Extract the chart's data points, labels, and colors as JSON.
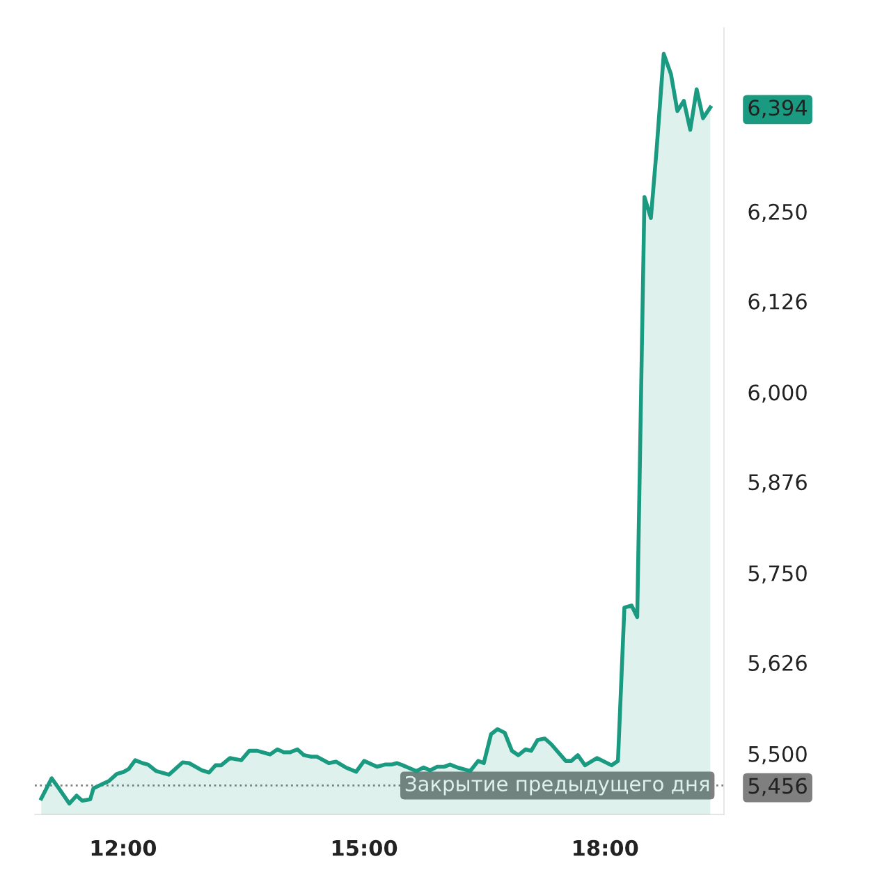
{
  "chart_data": {
    "type": "area",
    "color": "#1a9a80",
    "x": [
      10.98,
      11.11,
      11.2,
      11.33,
      11.42,
      11.49,
      11.59,
      11.63,
      11.74,
      11.82,
      11.92,
      12.01,
      12.07,
      12.15,
      12.24,
      12.31,
      12.41,
      12.57,
      12.74,
      12.82,
      12.98,
      13.07,
      13.15,
      13.22,
      13.33,
      13.47,
      13.57,
      13.67,
      13.83,
      13.92,
      14.0,
      14.08,
      14.17,
      14.25,
      14.34,
      14.41,
      14.56,
      14.65,
      14.77,
      14.9,
      15.0,
      15.16,
      15.26,
      15.34,
      15.41,
      15.48,
      15.65,
      15.74,
      15.82,
      15.91,
      16.0,
      16.07,
      16.16,
      16.32,
      16.42,
      16.49,
      16.58,
      16.66,
      16.75,
      16.84,
      16.92,
      17.01,
      17.08,
      17.16,
      17.25,
      17.33,
      17.51,
      17.58,
      17.66,
      17.75,
      17.9,
      18.08,
      18.16,
      18.24,
      18.33,
      18.4,
      18.49,
      18.57,
      18.64,
      18.73,
      18.82,
      18.9,
      18.98,
      19.06,
      19.14,
      19.22,
      19.31
    ],
    "values": [
      5438,
      5466,
      5452,
      5431,
      5442,
      5435,
      5437,
      5452,
      5458,
      5462,
      5472,
      5475,
      5479,
      5491,
      5487,
      5485,
      5476,
      5471,
      5488,
      5487,
      5477,
      5474,
      5484,
      5484,
      5494,
      5491,
      5504,
      5504,
      5499,
      5506,
      5502,
      5502,
      5506,
      5498,
      5496,
      5496,
      5487,
      5489,
      5481,
      5475,
      5490,
      5482,
      5485,
      5485,
      5487,
      5484,
      5476,
      5481,
      5477,
      5482,
      5482,
      5485,
      5481,
      5476,
      5490,
      5487,
      5527,
      5534,
      5529,
      5504,
      5498,
      5506,
      5504,
      5519,
      5521,
      5513,
      5490,
      5490,
      5498,
      5484,
      5494,
      5484,
      5490,
      5702,
      5705,
      5689,
      6270,
      6241,
      6334,
      6468,
      6440,
      6389,
      6403,
      6363,
      6419,
      6379,
      6394
    ],
    "xlim": [
      10.9,
      19.48
    ],
    "ylim": [
      5416,
      6504
    ],
    "xticks": [
      {
        "value": 12,
        "label": "12:00"
      },
      {
        "value": 15,
        "label": "15:00"
      },
      {
        "value": 18,
        "label": "18:00"
      }
    ],
    "yticks": [
      {
        "value": 5456,
        "label": "5,456"
      },
      {
        "value": 5500,
        "label": "5,500"
      },
      {
        "value": 5626,
        "label": "5,626"
      },
      {
        "value": 5750,
        "label": "5,750"
      },
      {
        "value": 5876,
        "label": "5,876"
      },
      {
        "value": 6000,
        "label": "6,000"
      },
      {
        "value": 6126,
        "label": "6,126"
      },
      {
        "value": 6250,
        "label": "6,250"
      },
      {
        "value": 6394,
        "label": "6,394"
      }
    ],
    "ref_lines": [
      {
        "axis": "y",
        "value": 5456,
        "label": "Закрытие предыдущего дня",
        "color": "#7f7f7f",
        "line_style": "dotted"
      }
    ],
    "grid": false,
    "legend": false,
    "marker": "none",
    "line_style": "solid"
  }
}
